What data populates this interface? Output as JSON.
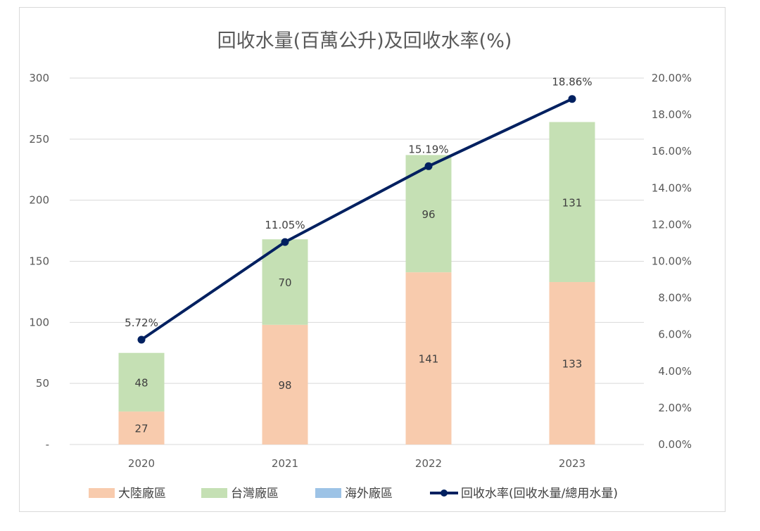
{
  "chart_data": {
    "type": "bar",
    "title": "回收水量(百萬公升)及回收水率(%)",
    "categories": [
      "2020",
      "2021",
      "2022",
      "2023"
    ],
    "series": [
      {
        "name": "大陸廠區",
        "kind": "bar",
        "color": "#f8cbad",
        "values": [
          27,
          98,
          141,
          133
        ],
        "labels": [
          "27",
          "98",
          "141",
          "133"
        ]
      },
      {
        "name": "台灣廠區",
        "kind": "bar",
        "color": "#c5e0b4",
        "values": [
          48,
          70,
          96,
          131
        ],
        "labels": [
          "48",
          "70",
          "96",
          "131"
        ]
      },
      {
        "name": "海外廠區",
        "kind": "bar",
        "color": "#9dc3e6",
        "values": [
          0,
          0,
          0,
          0
        ],
        "labels": []
      },
      {
        "name": "回收水率(回收水量/總用水量)",
        "kind": "line",
        "axis": "right",
        "color": "#002060",
        "values": [
          5.72,
          11.05,
          15.19,
          18.86
        ],
        "labels": [
          "5.72%",
          "11.05%",
          "15.19%",
          "18.86%"
        ]
      }
    ],
    "y_left": {
      "ylim": [
        0,
        300
      ],
      "ticks": [
        0,
        50,
        100,
        150,
        200,
        250,
        300
      ],
      "tick_labels": [
        "-",
        "50",
        "100",
        "150",
        "200",
        "250",
        "300"
      ]
    },
    "y_right": {
      "ylim": [
        0,
        20
      ],
      "ticks": [
        0,
        2,
        4,
        6,
        8,
        10,
        12,
        14,
        16,
        18,
        20
      ],
      "tick_labels": [
        "0.00%",
        "2.00%",
        "4.00%",
        "6.00%",
        "8.00%",
        "10.00%",
        "12.00%",
        "14.00%",
        "16.00%",
        "18.00%",
        "20.00%"
      ]
    },
    "grid": true,
    "legend_position": "bottom"
  }
}
